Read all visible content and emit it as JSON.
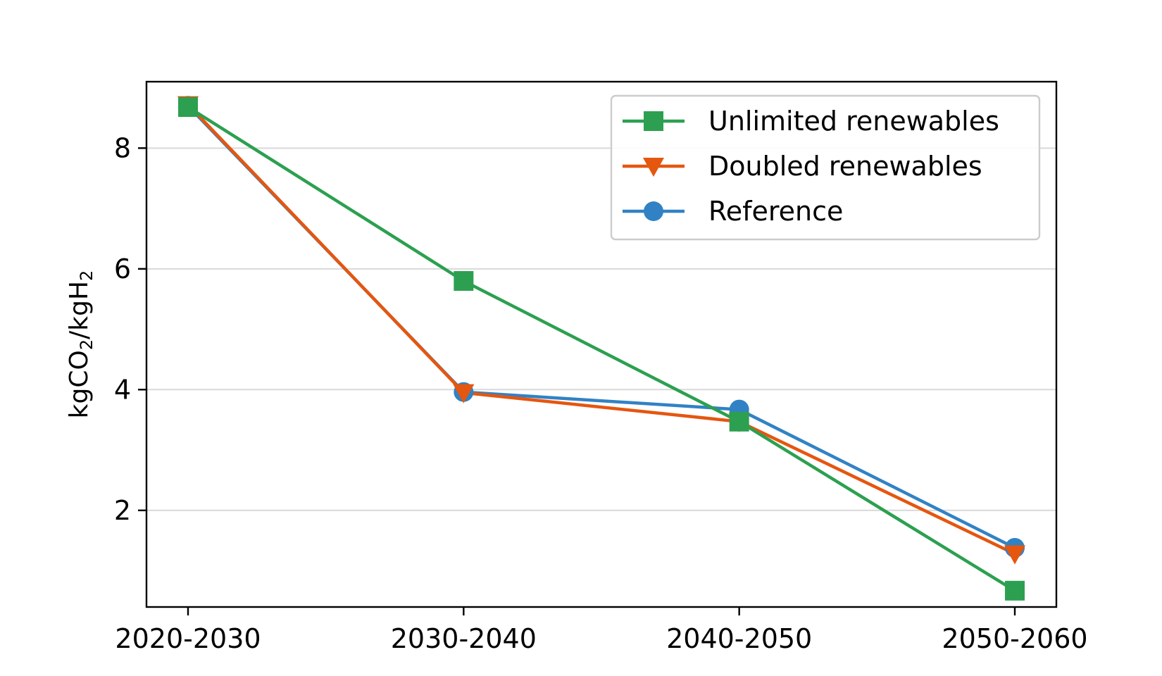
{
  "chart_data": {
    "type": "line",
    "categories": [
      "2020-2030",
      "2030-2040",
      "2040-2050",
      "2050-2060"
    ],
    "ylabel": "kgCO2/kgH2",
    "ylabel_parts": {
      "a": "kgCO",
      "sub1": "2",
      "b": "/kgH",
      "sub2": "2"
    },
    "ylim": [
      0.4,
      9.1
    ],
    "yticks": [
      2,
      4,
      6,
      8
    ],
    "grid": "y",
    "legend_position": "top-right",
    "series": [
      {
        "name": "Unlimited renewables",
        "color": "#2ca050",
        "marker": "square",
        "values": [
          8.68,
          5.8,
          3.47,
          0.67
        ]
      },
      {
        "name": "Doubled renewables",
        "color": "#e5560f",
        "marker": "triangle-down",
        "values": [
          8.72,
          3.95,
          3.47,
          1.28
        ]
      },
      {
        "name": "Reference",
        "color": "#3182c4",
        "marker": "circle",
        "values": [
          8.7,
          3.96,
          3.67,
          1.38
        ]
      }
    ]
  }
}
